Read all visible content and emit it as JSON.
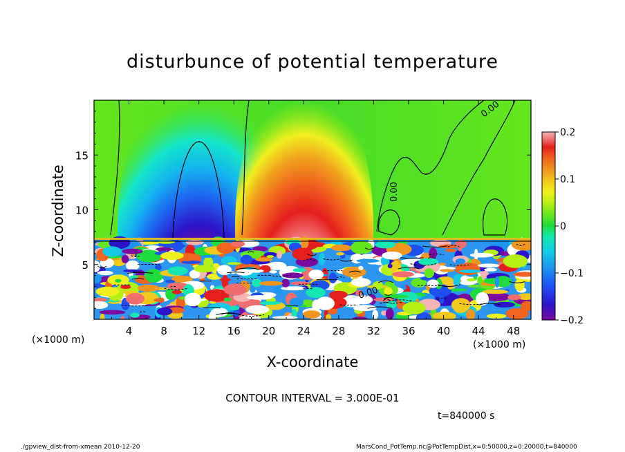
{
  "chart_data": {
    "type": "heatmap",
    "title": "disturbunce of potential temperature",
    "xlabel": "X-coordinate",
    "ylabel": "Z-coordinate",
    "x_unit": "(×1000 m)",
    "xlim": [
      0,
      50
    ],
    "ylim": [
      0,
      20
    ],
    "x_ticks": [
      4,
      8,
      12,
      16,
      20,
      24,
      28,
      32,
      36,
      40,
      44,
      48
    ],
    "y_ticks": [
      5,
      10,
      15
    ],
    "colorbar": {
      "range": [
        -0.2,
        0.2
      ],
      "ticks": [
        0.2,
        0.1,
        0,
        -0.1,
        -0.2
      ],
      "tick_labels": [
        "0.2",
        "0.1",
        "0",
        "−0.1",
        "−0.2"
      ],
      "colors": [
        "#7d0aa0",
        "#2d14c8",
        "#1e50f0",
        "#1e96f0",
        "#14c8e6",
        "#14e6b4",
        "#1edc3c",
        "#64e61e",
        "#b4f014",
        "#f0f01e",
        "#f0c81e",
        "#f0961e",
        "#f0641e",
        "#e61e1e",
        "#f06e6e",
        "#f5b4b4"
      ]
    },
    "upper_features": [
      {
        "kind": "negative_plume",
        "x_center": 12.0,
        "half_width": 5.0,
        "z_min": 7.5,
        "z_max": 20,
        "core_value": -0.25
      },
      {
        "kind": "positive_plume",
        "x_center": 24.0,
        "half_width": 4.5,
        "z_min": 7.5,
        "z_max": 20,
        "core_value": 0.25
      },
      {
        "kind": "background",
        "value": 0.0
      }
    ],
    "contour_labels": [
      "0.00",
      "0.00",
      "0.00",
      "0.00"
    ],
    "contour_interval": 0.3
  },
  "contour_text": "CONTOUR INTERVAL = 3.000E-01",
  "time_text": "t=840000 s",
  "x_unit_left": "(×1000 m)",
  "x_unit_right": "(×1000 m)",
  "footer_left": "./gpview_dist-from-xmean  2010-12-20",
  "footer_right": "MarsCond_PotTemp.nc@PotTempDist,x=0:50000,z=0:20000,t=840000"
}
